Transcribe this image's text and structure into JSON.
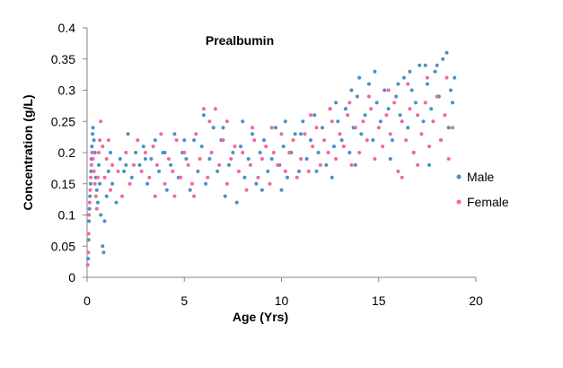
{
  "chart_data": {
    "type": "scatter",
    "title": "Prealbumin",
    "xlabel": "Age (Yrs)",
    "ylabel": "Concentration (g/L)",
    "xlim": [
      0,
      20
    ],
    "ylim": [
      0,
      0.4
    ],
    "xticks": [
      "0",
      "5",
      "10",
      "15",
      "20"
    ],
    "yticks": [
      "0",
      "0.05",
      "0.1",
      "0.15",
      "0.2",
      "0.25",
      "0.3",
      "0.35",
      "0.4"
    ],
    "grid": false,
    "legend_position": "right",
    "series": [
      {
        "name": "Male",
        "color": "#4a90c8",
        "points": [
          [
            0.05,
            0.03
          ],
          [
            0.08,
            0.06
          ],
          [
            0.1,
            0.09
          ],
          [
            0.12,
            0.11
          ],
          [
            0.15,
            0.13
          ],
          [
            0.18,
            0.15
          ],
          [
            0.2,
            0.17
          ],
          [
            0.22,
            0.19
          ],
          [
            0.25,
            0.21
          ],
          [
            0.28,
            0.23
          ],
          [
            0.3,
            0.24
          ],
          [
            0.35,
            0.22
          ],
          [
            0.4,
            0.2
          ],
          [
            0.45,
            0.16
          ],
          [
            0.5,
            0.14
          ],
          [
            0.55,
            0.12
          ],
          [
            0.6,
            0.18
          ],
          [
            0.65,
            0.15
          ],
          [
            0.7,
            0.1
          ],
          [
            0.8,
            0.05
          ],
          [
            0.85,
            0.04
          ],
          [
            0.9,
            0.09
          ],
          [
            1.0,
            0.13
          ],
          [
            1.1,
            0.17
          ],
          [
            1.2,
            0.2
          ],
          [
            1.3,
            0.15
          ],
          [
            1.5,
            0.12
          ],
          [
            1.7,
            0.19
          ],
          [
            1.9,
            0.17
          ],
          [
            2.1,
            0.23
          ],
          [
            2.3,
            0.16
          ],
          [
            2.5,
            0.2
          ],
          [
            2.7,
            0.18
          ],
          [
            2.9,
            0.21
          ],
          [
            3.1,
            0.15
          ],
          [
            3.3,
            0.19
          ],
          [
            3.5,
            0.22
          ],
          [
            3.7,
            0.17
          ],
          [
            3.9,
            0.2
          ],
          [
            4.1,
            0.14
          ],
          [
            4.3,
            0.18
          ],
          [
            4.5,
            0.23
          ],
          [
            4.7,
            0.16
          ],
          [
            4.9,
            0.2
          ],
          [
            5.1,
            0.19
          ],
          [
            5.3,
            0.14
          ],
          [
            5.5,
            0.22
          ],
          [
            5.7,
            0.17
          ],
          [
            5.9,
            0.21
          ],
          [
            6.1,
            0.15
          ],
          [
            6.3,
            0.19
          ],
          [
            6.5,
            0.24
          ],
          [
            6.7,
            0.17
          ],
          [
            6.9,
            0.22
          ],
          [
            7.1,
            0.13
          ],
          [
            7.3,
            0.18
          ],
          [
            7.5,
            0.2
          ],
          [
            7.7,
            0.12
          ],
          [
            7.9,
            0.21
          ],
          [
            8.1,
            0.16
          ],
          [
            8.3,
            0.19
          ],
          [
            8.5,
            0.23
          ],
          [
            8.7,
            0.15
          ],
          [
            8.9,
            0.2
          ],
          [
            9.1,
            0.22
          ],
          [
            9.3,
            0.17
          ],
          [
            9.5,
            0.19
          ],
          [
            9.7,
            0.24
          ],
          [
            9.9,
            0.18
          ],
          [
            10.1,
            0.21
          ],
          [
            10.3,
            0.16
          ],
          [
            10.5,
            0.2
          ],
          [
            10.7,
            0.23
          ],
          [
            10.9,
            0.17
          ],
          [
            11.1,
            0.25
          ],
          [
            11.3,
            0.19
          ],
          [
            11.5,
            0.22
          ],
          [
            11.7,
            0.26
          ],
          [
            11.9,
            0.2
          ],
          [
            12.1,
            0.24
          ],
          [
            12.3,
            0.18
          ],
          [
            12.5,
            0.27
          ],
          [
            12.7,
            0.21
          ],
          [
            12.9,
            0.25
          ],
          [
            13.1,
            0.22
          ],
          [
            13.3,
            0.27
          ],
          [
            13.5,
            0.2
          ],
          [
            13.7,
            0.24
          ],
          [
            13.9,
            0.29
          ],
          [
            14.1,
            0.23
          ],
          [
            14.3,
            0.26
          ],
          [
            14.5,
            0.31
          ],
          [
            14.7,
            0.22
          ],
          [
            14.9,
            0.28
          ],
          [
            15.1,
            0.25
          ],
          [
            15.3,
            0.3
          ],
          [
            15.5,
            0.27
          ],
          [
            15.7,
            0.22
          ],
          [
            15.9,
            0.29
          ],
          [
            16.1,
            0.26
          ],
          [
            16.3,
            0.32
          ],
          [
            16.5,
            0.24
          ],
          [
            16.7,
            0.3
          ],
          [
            16.9,
            0.28
          ],
          [
            17.1,
            0.34
          ],
          [
            17.3,
            0.25
          ],
          [
            17.5,
            0.31
          ],
          [
            17.7,
            0.27
          ],
          [
            17.9,
            0.33
          ],
          [
            18.1,
            0.29
          ],
          [
            18.3,
            0.35
          ],
          [
            18.5,
            0.36
          ],
          [
            18.6,
            0.24
          ],
          [
            18.7,
            0.3
          ],
          [
            18.8,
            0.28
          ],
          [
            18.9,
            0.32
          ],
          [
            14.0,
            0.32
          ],
          [
            14.8,
            0.33
          ],
          [
            16.0,
            0.31
          ],
          [
            16.6,
            0.33
          ],
          [
            17.4,
            0.34
          ],
          [
            18.0,
            0.34
          ],
          [
            12.8,
            0.28
          ],
          [
            13.6,
            0.3
          ],
          [
            10.2,
            0.25
          ],
          [
            11.0,
            0.23
          ],
          [
            8.0,
            0.25
          ],
          [
            7.0,
            0.24
          ],
          [
            6.0,
            0.26
          ],
          [
            5.0,
            0.22
          ],
          [
            4.0,
            0.2
          ],
          [
            3.0,
            0.19
          ],
          [
            2.0,
            0.18
          ],
          [
            9.0,
            0.14
          ],
          [
            10.0,
            0.14
          ],
          [
            11.8,
            0.17
          ],
          [
            12.6,
            0.16
          ],
          [
            13.8,
            0.18
          ],
          [
            15.6,
            0.19
          ],
          [
            16.8,
            0.2
          ],
          [
            17.6,
            0.18
          ],
          [
            18.2,
            0.22
          ]
        ]
      },
      {
        "name": "Female",
        "color": "#f0689a",
        "points": [
          [
            0.03,
            0.02
          ],
          [
            0.06,
            0.04
          ],
          [
            0.08,
            0.07
          ],
          [
            0.1,
            0.1
          ],
          [
            0.13,
            0.12
          ],
          [
            0.16,
            0.14
          ],
          [
            0.19,
            0.16
          ],
          [
            0.22,
            0.18
          ],
          [
            0.25,
            0.2
          ],
          [
            0.3,
            0.19
          ],
          [
            0.35,
            0.17
          ],
          [
            0.4,
            0.15
          ],
          [
            0.45,
            0.13
          ],
          [
            0.5,
            0.11
          ],
          [
            0.55,
            0.16
          ],
          [
            0.6,
            0.2
          ],
          [
            0.65,
            0.22
          ],
          [
            0.7,
            0.25
          ],
          [
            0.8,
            0.21
          ],
          [
            0.9,
            0.16
          ],
          [
            1.0,
            0.19
          ],
          [
            1.1,
            0.22
          ],
          [
            1.2,
            0.14
          ],
          [
            1.3,
            0.18
          ],
          [
            1.6,
            0.17
          ],
          [
            1.8,
            0.13
          ],
          [
            2.0,
            0.2
          ],
          [
            2.2,
            0.15
          ],
          [
            2.4,
            0.18
          ],
          [
            2.6,
            0.22
          ],
          [
            2.8,
            0.17
          ],
          [
            3.0,
            0.2
          ],
          [
            3.2,
            0.16
          ],
          [
            3.4,
            0.21
          ],
          [
            3.6,
            0.18
          ],
          [
            3.8,
            0.23
          ],
          [
            4.0,
            0.15
          ],
          [
            4.2,
            0.19
          ],
          [
            4.4,
            0.17
          ],
          [
            4.6,
            0.22
          ],
          [
            4.8,
            0.16
          ],
          [
            5.0,
            0.2
          ],
          [
            5.2,
            0.18
          ],
          [
            5.4,
            0.15
          ],
          [
            5.6,
            0.23
          ],
          [
            5.8,
            0.19
          ],
          [
            6.0,
            0.27
          ],
          [
            6.2,
            0.16
          ],
          [
            6.4,
            0.2
          ],
          [
            6.6,
            0.27
          ],
          [
            6.8,
            0.18
          ],
          [
            7.0,
            0.22
          ],
          [
            7.2,
            0.15
          ],
          [
            7.4,
            0.19
          ],
          [
            7.6,
            0.21
          ],
          [
            7.8,
            0.17
          ],
          [
            8.0,
            0.2
          ],
          [
            8.2,
            0.14
          ],
          [
            8.4,
            0.18
          ],
          [
            8.6,
            0.22
          ],
          [
            8.8,
            0.16
          ],
          [
            9.0,
            0.19
          ],
          [
            9.2,
            0.21
          ],
          [
            9.4,
            0.15
          ],
          [
            9.6,
            0.2
          ],
          [
            9.8,
            0.18
          ],
          [
            10.0,
            0.23
          ],
          [
            10.2,
            0.17
          ],
          [
            10.4,
            0.2
          ],
          [
            10.6,
            0.22
          ],
          [
            10.8,
            0.16
          ],
          [
            11.0,
            0.19
          ],
          [
            11.2,
            0.23
          ],
          [
            11.4,
            0.17
          ],
          [
            11.6,
            0.21
          ],
          [
            11.8,
            0.24
          ],
          [
            12.0,
            0.18
          ],
          [
            12.2,
            0.22
          ],
          [
            12.4,
            0.2
          ],
          [
            12.6,
            0.25
          ],
          [
            12.8,
            0.19
          ],
          [
            13.0,
            0.23
          ],
          [
            13.2,
            0.21
          ],
          [
            13.4,
            0.26
          ],
          [
            13.6,
            0.18
          ],
          [
            13.8,
            0.24
          ],
          [
            14.0,
            0.2
          ],
          [
            14.2,
            0.25
          ],
          [
            14.4,
            0.22
          ],
          [
            14.6,
            0.27
          ],
          [
            14.8,
            0.19
          ],
          [
            15.0,
            0.24
          ],
          [
            15.2,
            0.21
          ],
          [
            15.4,
            0.26
          ],
          [
            15.6,
            0.23
          ],
          [
            15.8,
            0.28
          ],
          [
            16.0,
            0.17
          ],
          [
            16.2,
            0.25
          ],
          [
            16.4,
            0.22
          ],
          [
            16.6,
            0.27
          ],
          [
            16.8,
            0.2
          ],
          [
            17.0,
            0.26
          ],
          [
            17.2,
            0.23
          ],
          [
            17.4,
            0.28
          ],
          [
            17.6,
            0.21
          ],
          [
            17.8,
            0.25
          ],
          [
            18.0,
            0.29
          ],
          [
            18.2,
            0.22
          ],
          [
            18.4,
            0.26
          ],
          [
            18.6,
            0.19
          ],
          [
            18.8,
            0.24
          ],
          [
            6.3,
            0.25
          ],
          [
            7.2,
            0.25
          ],
          [
            8.5,
            0.24
          ],
          [
            9.5,
            0.24
          ],
          [
            11.5,
            0.26
          ],
          [
            12.5,
            0.27
          ],
          [
            13.5,
            0.28
          ],
          [
            14.5,
            0.29
          ],
          [
            15.5,
            0.3
          ],
          [
            16.5,
            0.31
          ],
          [
            17.5,
            0.32
          ],
          [
            18.5,
            0.32
          ],
          [
            3.5,
            0.13
          ],
          [
            4.5,
            0.13
          ],
          [
            5.5,
            0.13
          ],
          [
            16.2,
            0.16
          ],
          [
            17.0,
            0.18
          ]
        ]
      }
    ]
  }
}
